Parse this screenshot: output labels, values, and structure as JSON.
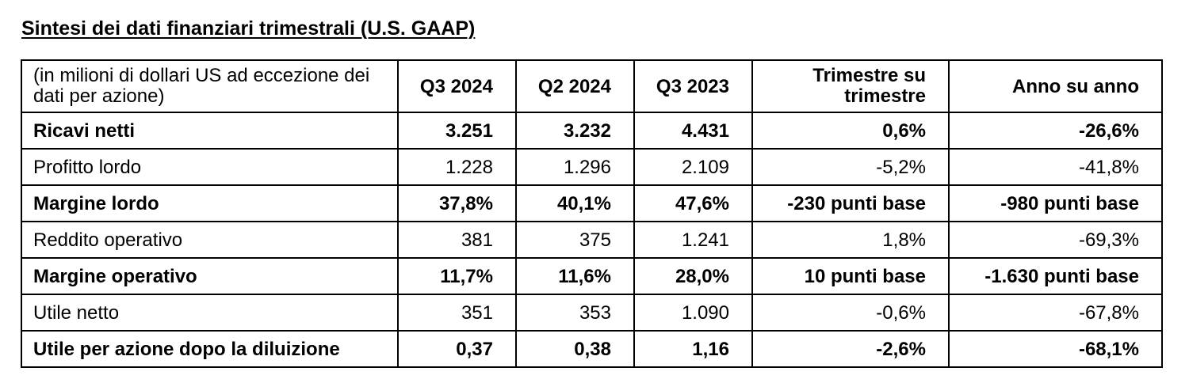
{
  "title": "Sintesi dei dati finanziari trimestrali (U.S. GAAP)",
  "table": {
    "unit_header": "(in milioni di dollari US ad eccezione dei dati per azione)",
    "columns": [
      "Q3 2024",
      "Q2 2024",
      "Q3 2023",
      "Trimestre su trimestre",
      "Anno su anno"
    ],
    "rows": [
      {
        "label": "Ricavi netti",
        "bold": true,
        "values": [
          "3.251",
          "3.232",
          "4.431",
          "0,6%",
          "-26,6%"
        ]
      },
      {
        "label": "Profitto lordo",
        "bold": false,
        "values": [
          "1.228",
          "1.296",
          "2.109",
          "-5,2%",
          "-41,8%"
        ]
      },
      {
        "label": "Margine lordo",
        "bold": true,
        "values": [
          "37,8%",
          "40,1%",
          "47,6%",
          "-230 punti base",
          "-980 punti base"
        ]
      },
      {
        "label": "Reddito operativo",
        "bold": false,
        "values": [
          "381",
          "375",
          "1.241",
          "1,8%",
          "-69,3%"
        ]
      },
      {
        "label": "Margine operativo",
        "bold": true,
        "values": [
          "11,7%",
          "11,6%",
          "28,0%",
          "10 punti base",
          "-1.630 punti base"
        ]
      },
      {
        "label": "Utile netto",
        "bold": false,
        "values": [
          "351",
          "353",
          "1.090",
          "-0,6%",
          "-67,8%"
        ]
      },
      {
        "label": "Utile per azione dopo la diluizione",
        "bold": true,
        "values": [
          "0,37",
          "0,38",
          "1,16",
          "-2,6%",
          "-68,1%"
        ]
      }
    ]
  }
}
